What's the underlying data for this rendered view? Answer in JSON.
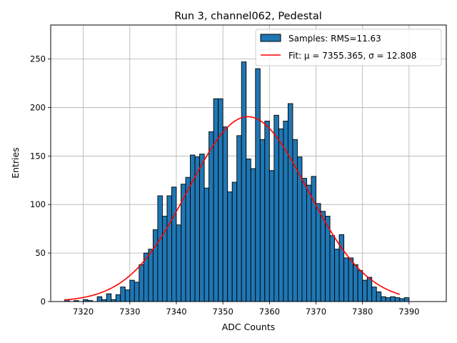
{
  "chart_data": {
    "type": "bar",
    "title": "Run 3, channel062, Pedestal",
    "xlabel": "ADC Counts",
    "ylabel": "Entries",
    "xlim": [
      7313,
      7398
    ],
    "ylim": [
      0,
      285
    ],
    "xticks": [
      7320,
      7330,
      7340,
      7350,
      7360,
      7370,
      7380,
      7390
    ],
    "yticks": [
      0,
      50,
      100,
      150,
      200,
      250
    ],
    "grid": true,
    "legend_position": "top-right",
    "colors": {
      "bar": "#1f77b4",
      "edge": "#000000",
      "fit": "#ff0000",
      "grid": "#b0b0b0"
    },
    "histogram": {
      "name": "Samples: RMS=11.63",
      "bin_start": 7316,
      "bin_width": 1,
      "counts": [
        2,
        0,
        1,
        0,
        2,
        1,
        0,
        5,
        2,
        8,
        2,
        7,
        15,
        12,
        22,
        20,
        38,
        50,
        54,
        74,
        109,
        88,
        109,
        118,
        79,
        121,
        128,
        151,
        149,
        152,
        117,
        175,
        209,
        209,
        180,
        113,
        123,
        171,
        247,
        147,
        137,
        240,
        167,
        186,
        135,
        192,
        178,
        186,
        204,
        167,
        149,
        127,
        120,
        129,
        101,
        93,
        88,
        68,
        54,
        69,
        45,
        45,
        38,
        32,
        22,
        25,
        15,
        10,
        5,
        4,
        5,
        4,
        3,
        4
      ]
    },
    "fit": {
      "label_prefix": "Fit: ",
      "mu": 7355.365,
      "sigma": 12.808,
      "amplitude": 190.5,
      "x_range": [
        7316,
        7388
      ],
      "label": "Fit: μ = 7355.365, σ = 12.808"
    }
  }
}
